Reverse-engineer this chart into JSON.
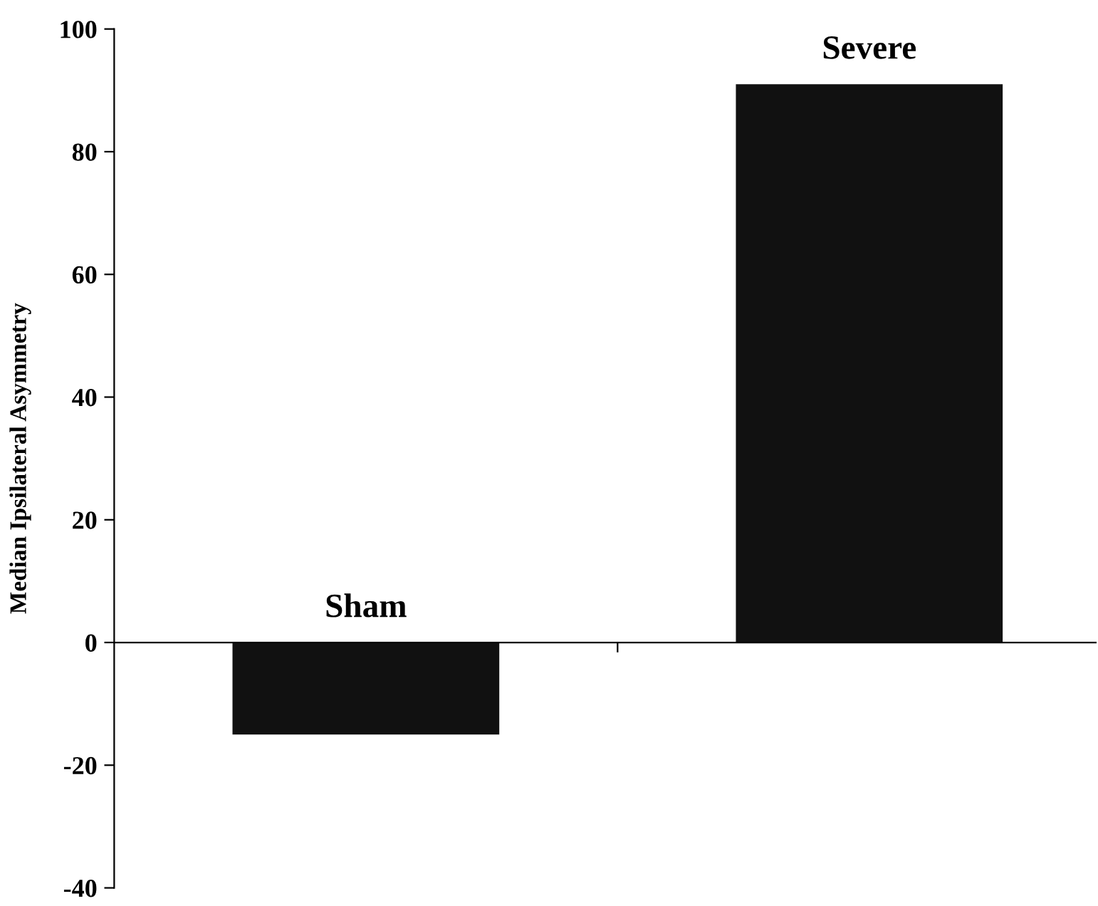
{
  "chart_data": {
    "type": "bar",
    "ylabel": "Median Ipsilateral Asymmetry",
    "categories": [
      "Sham",
      "Severe"
    ],
    "values": [
      -15,
      91
    ],
    "color": "#111111",
    "ylim": [
      -40,
      100
    ],
    "yticks": [
      -40,
      -20,
      0,
      20,
      40,
      60,
      80,
      100
    ]
  }
}
